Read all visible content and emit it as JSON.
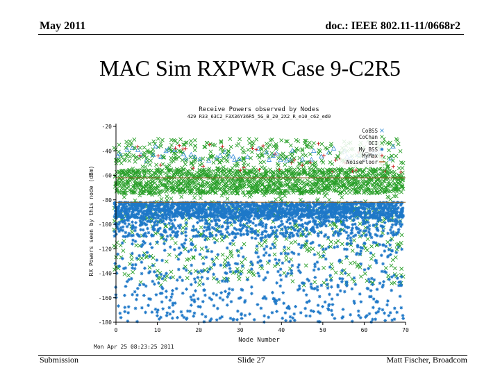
{
  "header": {
    "date": "May 2011",
    "doc": "doc.: IEEE 802.11-11/0668r2"
  },
  "slide_title": "MAC Sim RXPWR Case 9-C2R5",
  "footer": {
    "left": "Submission",
    "center": "Slide 27",
    "right": "Matt Fischer, Broadcom"
  },
  "chart_data": {
    "type": "scatter",
    "title": "Receive Powers observed by Nodes",
    "subtitle": "429 R33_63C2_F3X36Y36R5_5G_B_20_2X2_R_e10_c62_ed0",
    "xlabel": "Node Number",
    "ylabel": "RX Powers seen by this node (dBm)",
    "xlim": [
      0,
      70
    ],
    "ylim": [
      -180,
      -20
    ],
    "x_ticks": [
      "0",
      "10",
      "20",
      "30",
      "40",
      "50",
      "60",
      "70"
    ],
    "y_ticks": [
      "-20",
      "-40",
      "-60",
      "-80",
      "-100",
      "-120",
      "-140",
      "-160",
      "-180"
    ],
    "timestamp": "Mon Apr 25 08:23:25 2011",
    "reference_lines": [
      -62,
      -82
    ],
    "legend": [
      {
        "label": "CoBSS",
        "color": "#3a8fd8",
        "marker": "x"
      },
      {
        "label": "CoChan",
        "color": "#2aa02a",
        "marker": "x"
      },
      {
        "label": "OCI",
        "color": "#2aa02a",
        "marker": "x"
      },
      {
        "label": "My_BSS",
        "color": "#1e78c8",
        "marker": "*"
      },
      {
        "label": "MyMax",
        "color": "#c81e1e",
        "marker": "+"
      },
      {
        "label": "NoiseFloor",
        "color": "#b04000",
        "marker": "line"
      }
    ],
    "series": [
      {
        "name": "My_BSS",
        "color": "#1e78c8",
        "marker": "*",
        "y_range": [
          -180,
          -80
        ],
        "dense_band": [
          -95,
          -82
        ]
      },
      {
        "name": "CoChan",
        "color": "#2aa02a",
        "marker": "x",
        "y_range": [
          -150,
          -30
        ],
        "dense_band": [
          -75,
          -55
        ]
      },
      {
        "name": "CoBSS",
        "color": "#3a8fd8",
        "marker": "triangle",
        "y_range": [
          -48,
          -36
        ]
      },
      {
        "name": "MyMax",
        "color": "#c81e1e",
        "marker": "+",
        "y_range": [
          -60,
          -34
        ]
      }
    ]
  }
}
